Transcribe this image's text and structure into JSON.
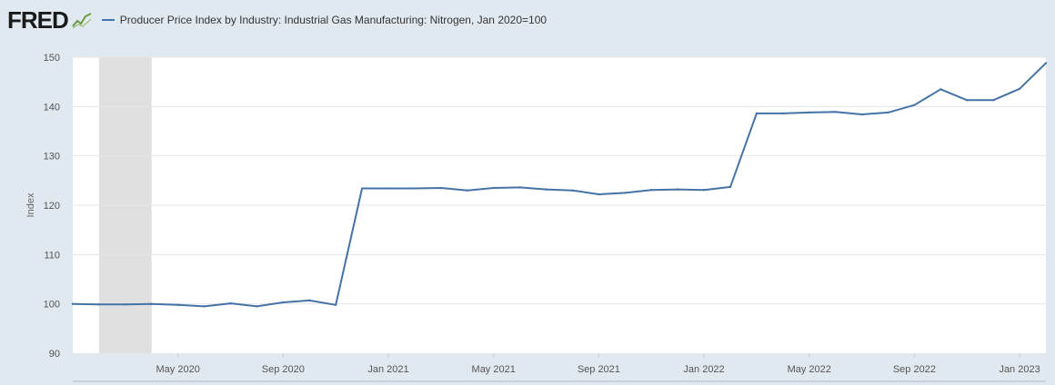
{
  "brand": {
    "logo_text": "FRED",
    "logo_icon": "line-graph-icon"
  },
  "colors": {
    "background": "#e1e9f0",
    "plot_background": "#ffffff",
    "series_line": "#4572a7",
    "recession_shading": "#e0e0e0",
    "gridline": "#e6e6e6"
  },
  "chart_data": {
    "type": "line",
    "title": "",
    "xlabel": "",
    "ylabel": "Index",
    "ylim": [
      90,
      150
    ],
    "y_ticks": [
      90,
      100,
      110,
      120,
      130,
      140,
      150
    ],
    "x_range": [
      "2020-01",
      "2023-02"
    ],
    "x_tick_labels": [
      {
        "date": "2020-05",
        "label": "May 2020"
      },
      {
        "date": "2020-09",
        "label": "Sep 2020"
      },
      {
        "date": "2021-01",
        "label": "Jan 2021"
      },
      {
        "date": "2021-05",
        "label": "May 2021"
      },
      {
        "date": "2021-09",
        "label": "Sep 2021"
      },
      {
        "date": "2022-01",
        "label": "Jan 2022"
      },
      {
        "date": "2022-05",
        "label": "May 2022"
      },
      {
        "date": "2022-09",
        "label": "Sep 2022"
      },
      {
        "date": "2023-01",
        "label": "Jan 2023"
      }
    ],
    "grid": true,
    "legend": "top-left",
    "recession": {
      "start": "2020-02",
      "end": "2020-04"
    },
    "series": [
      {
        "name": "Producer Price Index by Industry: Industrial Gas Manufacturing: Nitrogen, Jan 2020=100",
        "x": [
          "2020-01",
          "2020-02",
          "2020-03",
          "2020-04",
          "2020-05",
          "2020-06",
          "2020-07",
          "2020-08",
          "2020-09",
          "2020-10",
          "2020-11",
          "2020-12",
          "2021-01",
          "2021-02",
          "2021-03",
          "2021-04",
          "2021-05",
          "2021-06",
          "2021-07",
          "2021-08",
          "2021-09",
          "2021-10",
          "2021-11",
          "2021-12",
          "2022-01",
          "2022-02",
          "2022-03",
          "2022-04",
          "2022-05",
          "2022-06",
          "2022-07",
          "2022-08",
          "2022-09",
          "2022-10",
          "2022-11",
          "2022-12",
          "2023-01",
          "2023-02"
        ],
        "values": [
          100.0,
          99.9,
          99.9,
          100.0,
          99.8,
          99.5,
          100.1,
          99.5,
          100.3,
          100.7,
          99.8,
          123.4,
          123.4,
          123.4,
          123.5,
          123.0,
          123.5,
          123.6,
          123.2,
          123.0,
          122.2,
          122.5,
          123.1,
          123.2,
          123.1,
          123.7,
          138.6,
          138.6,
          138.8,
          138.9,
          138.4,
          138.8,
          140.3,
          143.5,
          141.3,
          141.3,
          143.6,
          148.8
        ]
      }
    ]
  }
}
